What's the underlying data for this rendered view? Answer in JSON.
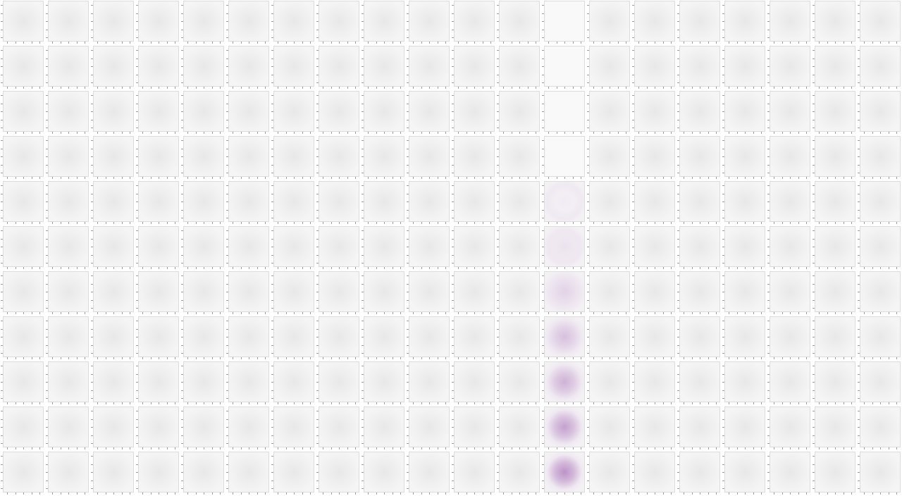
{
  "chart_data": {
    "type": "heatmap",
    "title": "",
    "xlabel": "",
    "ylabel": "",
    "grid": {
      "rows": 11,
      "cols": 20
    },
    "colors": {
      "neutral_center": "#e9e8e9",
      "neutral_edge": "#f6f5f6",
      "highlight": "#b585c2",
      "blank": "#f9f9f9",
      "frame": "#dcdcdc",
      "tick": "#9a9a9a"
    },
    "highlight_column_index": 12,
    "highlight_column_intensity_by_row": [
      0.0,
      0.0,
      0.0,
      0.0,
      0.05,
      0.15,
      0.3,
      0.48,
      0.62,
      0.78,
      0.92
    ],
    "neutral_intensity": 0.35
  }
}
